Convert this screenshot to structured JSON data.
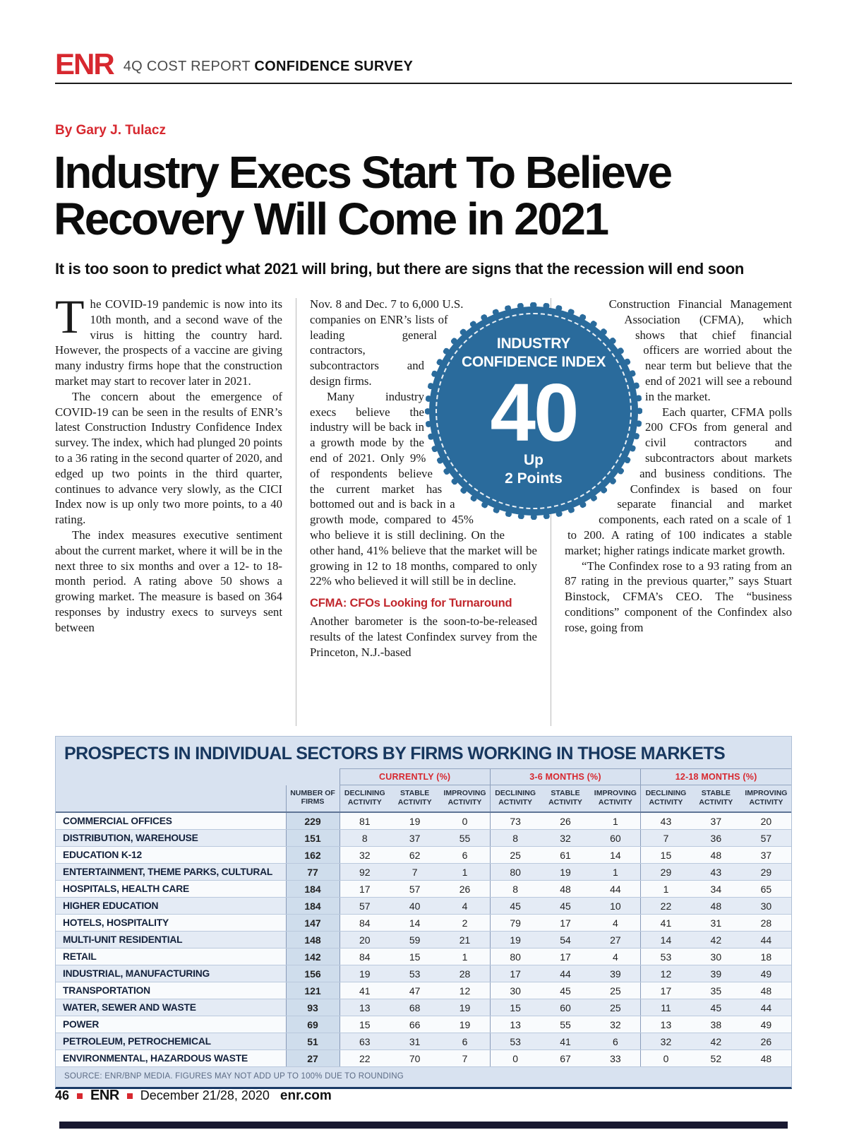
{
  "masthead": {
    "logo": "ENR",
    "section_label": "4Q COST REPORT",
    "section_bold": "CONFIDENCE SURVEY"
  },
  "byline": "By Gary J. Tulacz",
  "headline": {
    "line1": "Industry Execs Start To Believe",
    "line2": "Recovery Will Come in 2021"
  },
  "deck": "It is too soon to predict what 2021 will bring, but there are signs that the recession will end soon",
  "badge": {
    "label_line1": "INDUSTRY",
    "label_line2": "CONFIDENCE INDEX",
    "value": "40",
    "delta_line1": "Up",
    "delta_line2": "2 Points",
    "color": "#2a6b9c"
  },
  "article": {
    "drop_cap": "T",
    "col1": {
      "p1": "he COVID-19 pandemic is now into its 10th month, and a second wave of the virus is hitting the country hard. However, the prospects of a vaccine are giving many industry firms hope that the construction market may start to recover later in 2021.",
      "p2": "The concern about the emergence of COVID-19 can be seen in the results of ENR’s latest Construction Industry Confidence Index survey. The index, which had plunged 20 points to a 36 rating in the second quarter of 2020, and edged up two points in the third quarter, continues to advance very slowly, as the CICI Index now is up only two more points, to a 40 rating.",
      "p3": "The index measures executive sentiment about the current market, where it will be in the next three to six months and over a 12- to 18-month period. A rating above 50 shows a growing market. The measure is based on 364 responses by industry execs to surveys sent between"
    },
    "col2": {
      "p1": "Nov. 8 and Dec. 7 to 6,000 U.S. companies on ENR’s lists of leading general contractors, subcontractors and design firms.",
      "p2": "Many industry execs believe the industry will be back in a growth mode by the end of 2021. Only 9% of respondents believe the current market has bottomed out and is back in a growth mode, compared to 45% who believe it is still declining. On the other hand, 41% believe that the market will be growing in 12 to 18 months, compared to only 22% who believed it will still be in decline.",
      "heading": "CFMA: CFOs Looking for Turnaround",
      "p3": "Another barometer is the soon-to-be-released results of the latest Confindex survey from the Princeton, N.J.-based"
    },
    "col3": {
      "p1": "Construction Financial Management Association (CFMA), which shows that chief financial officers are worried about the near term but believe that the end of 2021 will see a rebound in the market.",
      "p2": "Each quarter, CFMA polls 200 CFOs from general and civil contractors and subcontractors about markets and business conditions. The Confindex is based on four separate financial and market components, each rated on a scale of 1 to 200. A rating of 100 indicates a stable market; higher ratings indicate market growth.",
      "p3": "“The Confindex rose to a 93 rating from an 87 rating in the previous quarter,” says Stuart Binstock, CFMA’s CEO. The “business conditions” component of the Confindex also rose, going from"
    }
  },
  "table": {
    "title": "PROSPECTS IN INDIVIDUAL SECTORS BY FIRMS WORKING IN THOSE MARKETS",
    "group_headers": [
      "CURRENTLY (%)",
      "3-6 MONTHS (%)",
      "12-18 MONTHS (%)"
    ],
    "col_firms": "NUMBER OF FIRMS",
    "sub_headers": [
      "DECLINING ACTIVITY",
      "STABLE ACTIVITY",
      "IMPROVING ACTIVITY"
    ],
    "rows": [
      {
        "sector": "COMMERCIAL OFFICES",
        "firms": 229,
        "currently": [
          81,
          19,
          0
        ],
        "m36": [
          73,
          26,
          1
        ],
        "m1218": [
          43,
          37,
          20
        ]
      },
      {
        "sector": "DISTRIBUTION, WAREHOUSE",
        "firms": 151,
        "currently": [
          8,
          37,
          55
        ],
        "m36": [
          8,
          32,
          60
        ],
        "m1218": [
          7,
          36,
          57
        ]
      },
      {
        "sector": "EDUCATION K-12",
        "firms": 162,
        "currently": [
          32,
          62,
          6
        ],
        "m36": [
          25,
          61,
          14
        ],
        "m1218": [
          15,
          48,
          37
        ]
      },
      {
        "sector": "ENTERTAINMENT, THEME PARKS, CULTURAL",
        "firms": 77,
        "currently": [
          92,
          7,
          1
        ],
        "m36": [
          80,
          19,
          1
        ],
        "m1218": [
          29,
          43,
          29
        ]
      },
      {
        "sector": "HOSPITALS, HEALTH CARE",
        "firms": 184,
        "currently": [
          17,
          57,
          26
        ],
        "m36": [
          8,
          48,
          44
        ],
        "m1218": [
          1,
          34,
          65
        ]
      },
      {
        "sector": "HIGHER EDUCATION",
        "firms": 184,
        "currently": [
          57,
          40,
          4
        ],
        "m36": [
          45,
          45,
          10
        ],
        "m1218": [
          22,
          48,
          30
        ]
      },
      {
        "sector": "HOTELS, HOSPITALITY",
        "firms": 147,
        "currently": [
          84,
          14,
          2
        ],
        "m36": [
          79,
          17,
          4
        ],
        "m1218": [
          41,
          31,
          28
        ]
      },
      {
        "sector": "MULTI-UNIT RESIDENTIAL",
        "firms": 148,
        "currently": [
          20,
          59,
          21
        ],
        "m36": [
          19,
          54,
          27
        ],
        "m1218": [
          14,
          42,
          44
        ]
      },
      {
        "sector": "RETAIL",
        "firms": 142,
        "currently": [
          84,
          15,
          1
        ],
        "m36": [
          80,
          17,
          4
        ],
        "m1218": [
          53,
          30,
          18
        ]
      },
      {
        "sector": "INDUSTRIAL, MANUFACTURING",
        "firms": 156,
        "currently": [
          19,
          53,
          28
        ],
        "m36": [
          17,
          44,
          39
        ],
        "m1218": [
          12,
          39,
          49
        ]
      },
      {
        "sector": "TRANSPORTATION",
        "firms": 121,
        "currently": [
          41,
          47,
          12
        ],
        "m36": [
          30,
          45,
          25
        ],
        "m1218": [
          17,
          35,
          48
        ]
      },
      {
        "sector": "WATER, SEWER AND WASTE",
        "firms": 93,
        "currently": [
          13,
          68,
          19
        ],
        "m36": [
          15,
          60,
          25
        ],
        "m1218": [
          11,
          45,
          44
        ]
      },
      {
        "sector": "POWER",
        "firms": 69,
        "currently": [
          15,
          66,
          19
        ],
        "m36": [
          13,
          55,
          32
        ],
        "m1218": [
          13,
          38,
          49
        ]
      },
      {
        "sector": "PETROLEUM, PETROCHEMICAL",
        "firms": 51,
        "currently": [
          63,
          31,
          6
        ],
        "m36": [
          53,
          41,
          6
        ],
        "m1218": [
          32,
          42,
          26
        ]
      },
      {
        "sector": "ENVIRONMENTAL, HAZARDOUS WASTE",
        "firms": 27,
        "currently": [
          22,
          70,
          7
        ],
        "m36": [
          0,
          67,
          33
        ],
        "m1218": [
          0,
          52,
          48
        ]
      }
    ],
    "source": "SOURCE: ENR/BNP MEDIA. FIGURES MAY NOT ADD UP TO 100% DUE TO ROUNDING"
  },
  "footer": {
    "page_number": "46",
    "brand": "ENR",
    "date": "December 21/28, 2020",
    "site": "enr.com"
  }
}
